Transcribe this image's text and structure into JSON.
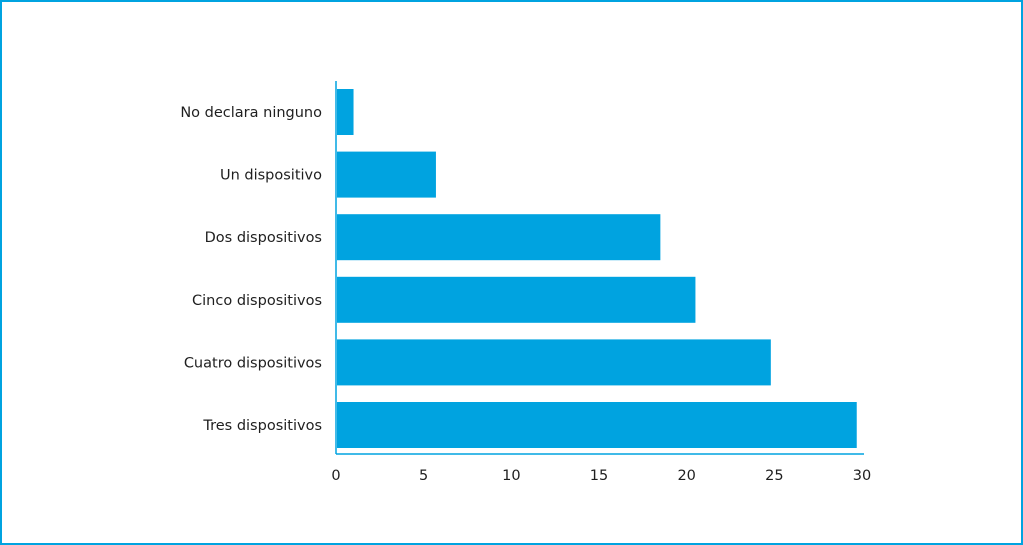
{
  "chart_data": {
    "type": "bar",
    "orientation": "horizontal",
    "title": "",
    "xlabel": "",
    "ylabel": "",
    "categories": [
      "No declara ninguno",
      "Un dispositivo",
      "Dos dispositivos",
      "Cinco dispositivos",
      "Cuatro dispositivos",
      "Tres dispositivos"
    ],
    "values": [
      1,
      5.7,
      18.5,
      20.5,
      24.8,
      29.7
    ],
    "xlim": [
      0,
      30
    ],
    "xticks": [
      "0",
      "5",
      "10",
      "15",
      "20",
      "25",
      "30"
    ],
    "grid": false,
    "legend": "none",
    "colors": {
      "bar": "#00a3e0",
      "frame": "#00a3e0",
      "axis": "#00a3e0",
      "text": "#1f1f1f"
    }
  }
}
